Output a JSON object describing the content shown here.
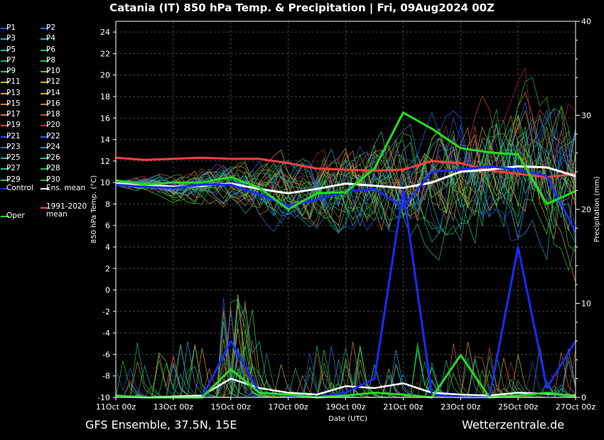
{
  "title": "Catania  (IT)  850 hPa Temp. & Precipitation | Fri, 09Aug2024 00Z",
  "footer": {
    "left": "GFS Ensemble, 37.5N, 15E",
    "right": "Wetterzentrale.de"
  },
  "colors": {
    "P1": "#2f4fdc",
    "P2": "#1e6ef0",
    "P3": "#2aa7c8",
    "P4": "#1fb8a8",
    "P5": "#25b6a0",
    "P6": "#22c06a",
    "P7": "#1faa8a",
    "P8": "#2fbf58",
    "P9": "#3ccf3c",
    "P10": "#46d82a",
    "P11": "#a9c93a",
    "P12": "#c8b030",
    "P13": "#d4a52a",
    "P14": "#e0a035",
    "P15": "#d88a3a",
    "P16": "#c8783a",
    "P17": "#e07a3a",
    "P18": "#c84a3a",
    "P19": "#d8403a",
    "P20": "#b02a2a",
    "P21": "#3a4fd8",
    "P22": "#2a5ad8",
    "P23": "#2a7ad0",
    "P24": "#2a90c8",
    "P25": "#2ab0c0",
    "P26": "#28c0a8",
    "P27": "#2ac08a",
    "P28": "#22b860",
    "P29": "#3ad03a",
    "P30": "#22c02a",
    "control": "#1a2aff",
    "ens_mean": "#ffffff",
    "clim_mean": "#ff4040",
    "oper": "#22dd22"
  },
  "chart_data": {
    "type": "line",
    "title": "Catania  (IT)  850 hPa Temp. & Precipitation | Fri, 09Aug2024 00Z",
    "xlabel": "Date (UTC)",
    "ylabel": "850 hPa Temp. (°C)",
    "y2label": "Precipitation (mm)",
    "x_range": [
      0,
      16
    ],
    "ylim": [
      -10,
      25
    ],
    "y2lim": [
      0,
      40
    ],
    "y_ticks": [
      "24",
      "22",
      "20",
      "18",
      "16",
      "14",
      "12",
      "10",
      "8",
      "6",
      "4",
      "2",
      "0",
      "-2",
      "-4",
      "-6",
      "-8",
      "-10"
    ],
    "y2_ticks": [
      "40",
      "30",
      "20",
      "10",
      "0"
    ],
    "x_ticks": [
      {
        "x": 0,
        "label": "11Oct 00z"
      },
      {
        "x": 2,
        "label": "13Oct 00z"
      },
      {
        "x": 4,
        "label": "15Oct 00z"
      },
      {
        "x": 6,
        "label": "17Oct 00z"
      },
      {
        "x": 8,
        "label": "19Oct 00z"
      },
      {
        "x": 10,
        "label": "21Oct 00z"
      },
      {
        "x": 12,
        "label": "23Oct 00z"
      },
      {
        "x": 14,
        "label": "25Oct 00z"
      },
      {
        "x": 16,
        "label": "27Oct 00z"
      }
    ],
    "grid": true,
    "legend": {
      "position": "left",
      "items": [
        {
          "key": "P1",
          "label": "P1"
        },
        {
          "key": "P2",
          "label": "P2"
        },
        {
          "key": "P3",
          "label": "P3"
        },
        {
          "key": "P4",
          "label": "P4"
        },
        {
          "key": "P5",
          "label": "P5"
        },
        {
          "key": "P6",
          "label": "P6"
        },
        {
          "key": "P7",
          "label": "P7"
        },
        {
          "key": "P8",
          "label": "P8"
        },
        {
          "key": "P9",
          "label": "P9"
        },
        {
          "key": "P10",
          "label": "P10"
        },
        {
          "key": "P11",
          "label": "P11"
        },
        {
          "key": "P12",
          "label": "P12"
        },
        {
          "key": "P13",
          "label": "P13"
        },
        {
          "key": "P14",
          "label": "P14"
        },
        {
          "key": "P15",
          "label": "P15"
        },
        {
          "key": "P16",
          "label": "P16"
        },
        {
          "key": "P17",
          "label": "P17"
        },
        {
          "key": "P18",
          "label": "P18"
        },
        {
          "key": "P19",
          "label": "P19"
        },
        {
          "key": "P20",
          "label": "P20"
        },
        {
          "key": "P21",
          "label": "P21"
        },
        {
          "key": "P22",
          "label": "P22"
        },
        {
          "key": "P23",
          "label": "P23"
        },
        {
          "key": "P24",
          "label": "P24"
        },
        {
          "key": "P25",
          "label": "P25"
        },
        {
          "key": "P26",
          "label": "P26"
        },
        {
          "key": "P27",
          "label": "P27"
        },
        {
          "key": "P28",
          "label": "P28"
        },
        {
          "key": "P29",
          "label": "P29"
        },
        {
          "key": "P30",
          "label": "P30"
        },
        {
          "key": "control",
          "label": "Control"
        },
        {
          "key": "ens_mean",
          "label": "Ens. mean"
        },
        {
          "key": "clim_mean",
          "label": "1991-2020 mean"
        },
        {
          "key": "oper",
          "label": "Oper"
        }
      ]
    },
    "series": [
      {
        "name": "1991-2020 mean",
        "axis": "temp",
        "x": [
          0,
          1,
          2,
          3,
          4,
          5,
          6,
          7,
          8,
          9,
          10,
          11,
          12,
          13,
          14,
          15,
          16
        ],
        "values": [
          12.3,
          12.1,
          12.2,
          12.3,
          12.2,
          12.2,
          11.8,
          11.3,
          11.2,
          11.1,
          11.2,
          12.0,
          11.8,
          11.1,
          10.8,
          10.5,
          10.8
        ]
      },
      {
        "name": "Ens. mean",
        "axis": "temp",
        "x": [
          0,
          1,
          2,
          3,
          4,
          5,
          6,
          7,
          8,
          9,
          10,
          11,
          12,
          13,
          14,
          15,
          16
        ],
        "values": [
          9.9,
          9.8,
          9.6,
          9.7,
          9.9,
          9.4,
          9.0,
          9.4,
          9.9,
          9.7,
          9.5,
          10.0,
          11.0,
          11.2,
          11.5,
          11.4,
          10.6
        ]
      },
      {
        "name": "Control",
        "axis": "temp",
        "x": [
          0,
          1,
          2,
          3,
          4,
          5,
          6,
          7,
          8,
          9,
          10,
          11,
          12,
          13,
          14,
          15,
          16
        ],
        "values": [
          9.8,
          9.6,
          9.5,
          9.8,
          9.8,
          8.9,
          7.8,
          8.4,
          9.2,
          9.4,
          7.7,
          11.0,
          11.2,
          11.5,
          11.2,
          10.6,
          5.4
        ]
      },
      {
        "name": "Oper",
        "axis": "temp",
        "x": [
          0,
          1,
          2,
          3,
          4,
          5,
          6,
          7,
          8,
          9,
          10,
          11,
          12,
          13,
          14,
          15,
          16
        ],
        "values": [
          10.2,
          9.8,
          10.0,
          10.0,
          10.5,
          9.5,
          7.5,
          9.0,
          9.1,
          11.3,
          16.5,
          15.0,
          13.2,
          12.8,
          12.6,
          8.0,
          9.2
        ]
      },
      {
        "name": "Ens. mean precip",
        "axis": "precip",
        "x": [
          0,
          1,
          2,
          3,
          4,
          5,
          6,
          7,
          8,
          9,
          10,
          11,
          12,
          13,
          14,
          15,
          16
        ],
        "values": [
          0.1,
          0.0,
          0.1,
          0.2,
          2.0,
          1.0,
          0.5,
          0.3,
          1.2,
          1.0,
          1.5,
          0.5,
          0.3,
          0.2,
          0.5,
          0.4,
          0.2
        ]
      },
      {
        "name": "Control precip",
        "axis": "precip",
        "x": [
          0,
          1,
          2,
          3,
          4,
          5,
          6,
          7,
          8,
          9,
          10,
          11,
          12,
          13,
          14,
          15,
          16
        ],
        "values": [
          0.1,
          0.0,
          0.0,
          0.0,
          6.0,
          0.5,
          0.2,
          0.0,
          0.5,
          2.0,
          22.0,
          0.3,
          0.0,
          0.0,
          16.0,
          1.0,
          6.0
        ]
      },
      {
        "name": "Oper precip",
        "axis": "precip",
        "x": [
          0,
          1,
          2,
          3,
          4,
          5,
          6,
          7,
          8,
          9,
          10,
          11,
          12,
          13,
          14,
          15,
          16
        ],
        "values": [
          0.2,
          0.0,
          0.0,
          0.0,
          3.0,
          0.5,
          0.3,
          0.0,
          0.2,
          0.5,
          0.3,
          0.0,
          4.5,
          0.0,
          0.2,
          0.5,
          0.1
        ]
      }
    ]
  }
}
